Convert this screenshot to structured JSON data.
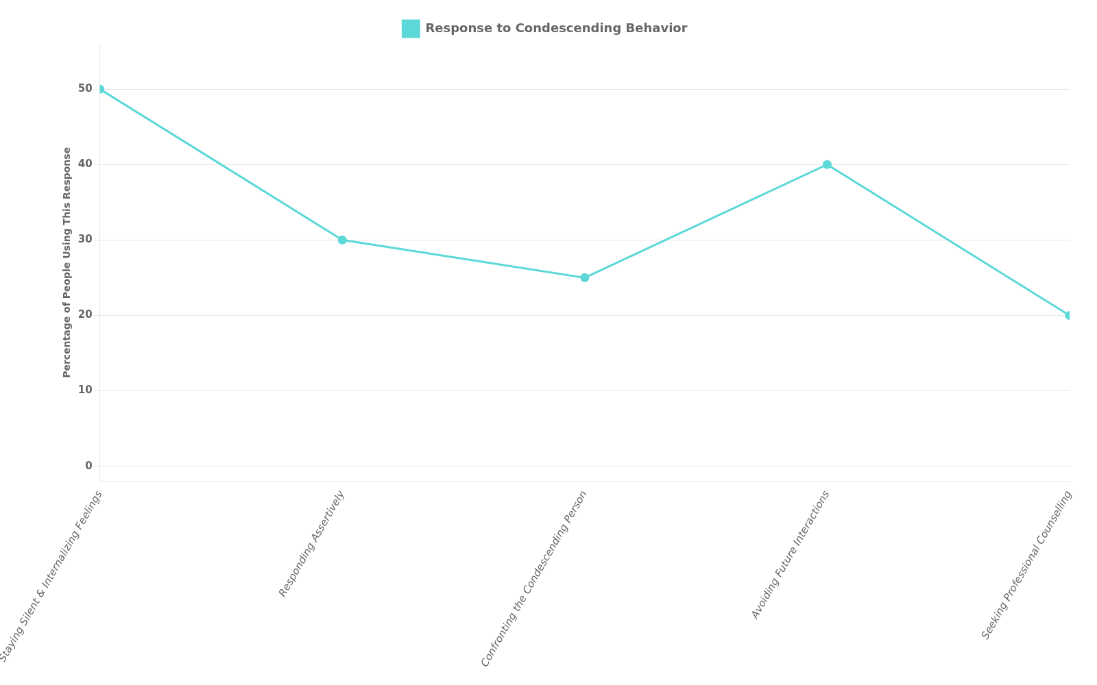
{
  "chart_data": {
    "type": "line",
    "ylabel": "Percentage of People Using This Response",
    "categories": [
      "Staying Silent & Internalizing Feelings",
      "Responding Assertively",
      "Confronting the Condescending Person",
      "Avoiding Future Interactions",
      "Seeking Professional Counselling"
    ],
    "series": [
      {
        "name": "Response to Condescending Behavior",
        "color": "#5DD8D8",
        "marker": "circle",
        "values": [
          50,
          30,
          25,
          40,
          20
        ]
      }
    ],
    "ylim": [
      -2,
      56
    ],
    "yticks": [
      0,
      10,
      20,
      30,
      40,
      50
    ],
    "grid": true,
    "legend": "top"
  }
}
